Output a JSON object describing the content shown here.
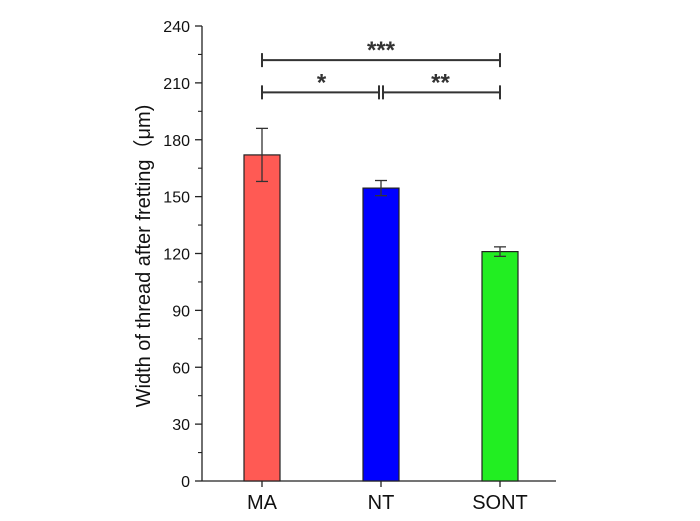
{
  "chart_data": {
    "type": "bar",
    "title": "",
    "xlabel": "",
    "ylabel": "Width of thread after fretting（μm)",
    "ylim": [
      0,
      240
    ],
    "yticks": [
      0,
      30,
      60,
      90,
      120,
      150,
      180,
      210,
      240
    ],
    "categories": [
      "MA",
      "NT",
      "SONT"
    ],
    "values": [
      172,
      154.5,
      121
    ],
    "errors": [
      14,
      4,
      2.5
    ],
    "colors": [
      "#ff5a54",
      "#0000ff",
      "#22ee22"
    ],
    "grid": false,
    "significance": [
      {
        "from": "MA",
        "to": "NT",
        "label": "*",
        "y": 205
      },
      {
        "from": "NT",
        "to": "SONT",
        "label": "**",
        "y": 205
      },
      {
        "from": "MA",
        "to": "SONT",
        "label": "***",
        "y": 222
      }
    ]
  }
}
